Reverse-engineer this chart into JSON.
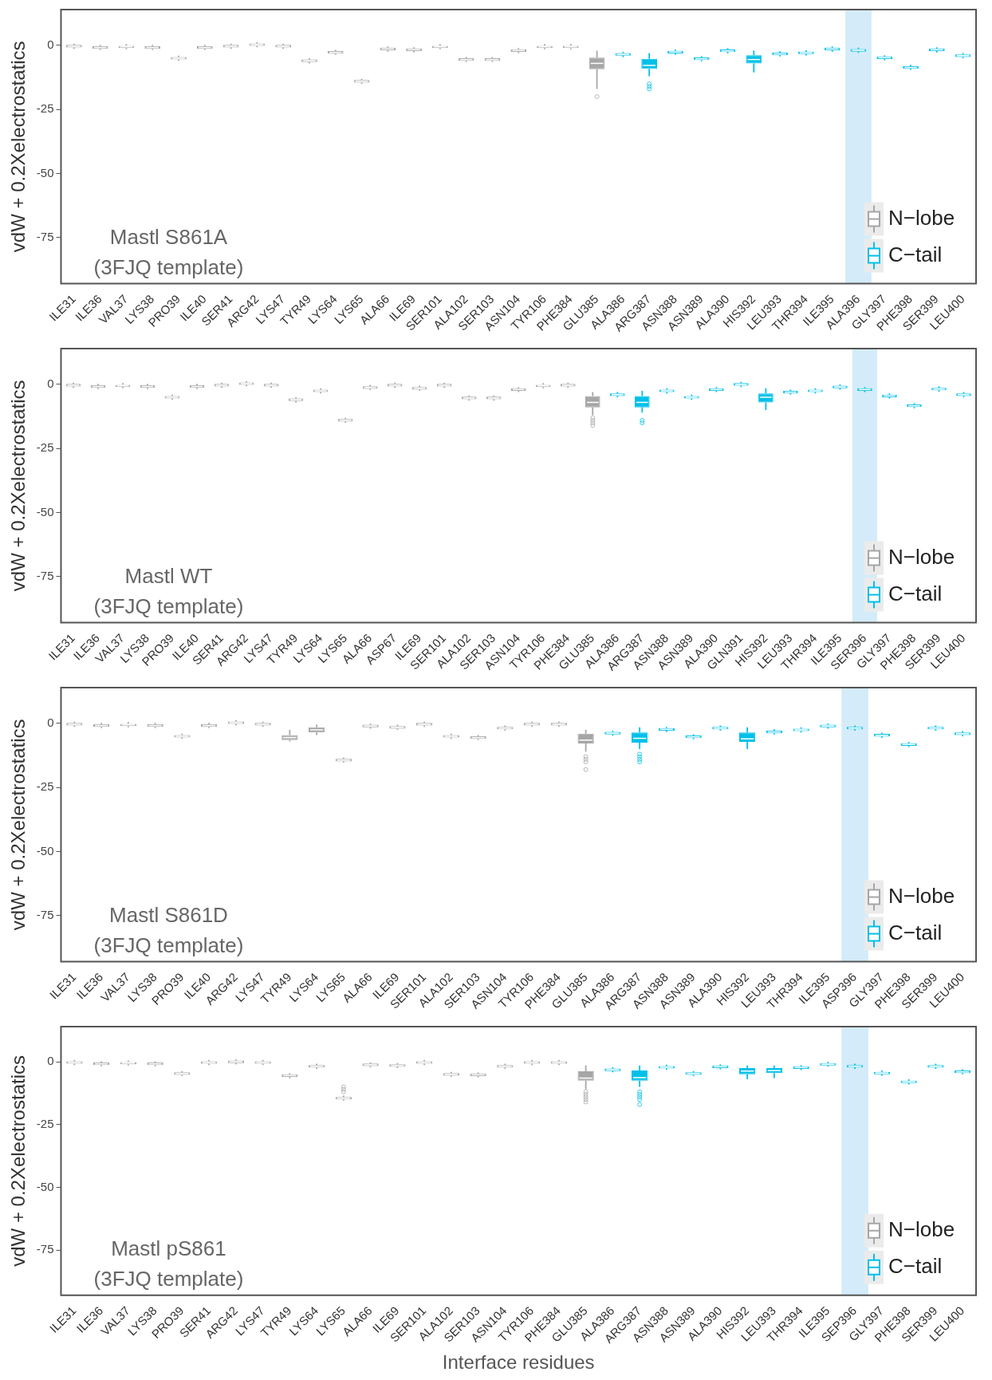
{
  "chart_data": [
    {
      "type": "box",
      "ylabel": "vdW + 0.2Xelectrostatics",
      "annotations": [
        "Mastl S861A",
        "(3FJQ template)"
      ],
      "legend": "bottom right",
      "ylim": [
        -93,
        14
      ],
      "yticks": [
        0,
        -25,
        -50,
        -75
      ],
      "categories": [
        "ILE31",
        "ILE36",
        "VAL37",
        "LYS38",
        "PRO39",
        "ILE40",
        "SER41",
        "ARG42",
        "LYS47",
        "TYR49",
        "LYS64",
        "LYS65",
        "ALA66",
        "ILE69",
        "SER101",
        "ALA102",
        "SER103",
        "ASN104",
        "TYR106",
        "PHE384",
        "GLU385",
        "ALA386",
        "ARG387",
        "ASN388",
        "ASN389",
        "ALA390",
        "HIS392",
        "LEU393",
        "THR394",
        "ILE395",
        "ALA396",
        "GLY397",
        "PHE398",
        "SER399",
        "LEU400"
      ],
      "bands": [
        {
          "axis": "x",
          "from": "ALA396",
          "to": "ALA396",
          "color": "#d4ecf9"
        }
      ],
      "series": [
        {
          "name": "N−lobe",
          "color": "#a6a6a6",
          "boxes": [
            {
              "low": -1.3,
              "q1": -0.8,
              "median": -0.3,
              "q3": 0.2,
              "high": 0.7
            },
            {
              "low": -1.8,
              "q1": -1.3,
              "median": -0.8,
              "q3": -0.3,
              "high": 0.2
            },
            {
              "low": -1.5,
              "q1": -1,
              "median": -0.5,
              "q3": 0,
              "high": 0.5
            },
            {
              "low": -1.8,
              "q1": -1.3,
              "median": -0.8,
              "q3": -0.3,
              "high": 0.2
            },
            {
              "low": -6,
              "q1": -5.5,
              "median": -5,
              "q3": -4.5,
              "high": -4
            },
            {
              "low": -1.8,
              "q1": -1.3,
              "median": -0.8,
              "q3": -0.3,
              "high": 0.2
            },
            {
              "low": -1.3,
              "q1": -0.8,
              "median": -0.3,
              "q3": 0.2,
              "high": 0.7
            },
            {
              "low": -0.7,
              "q1": -0.2,
              "median": 0.3,
              "q3": 0.8,
              "high": 1.3
            },
            {
              "low": -1.3,
              "q1": -0.8,
              "median": -0.3,
              "q3": 0.2,
              "high": 0.7
            },
            {
              "low": -7,
              "q1": -6.5,
              "median": -6,
              "q3": -5.5,
              "high": -5
            },
            {
              "low": -3.7,
              "q1": -3.2,
              "median": -2.7,
              "q3": -2.2,
              "high": -1.7
            },
            {
              "low": -15,
              "q1": -14.5,
              "median": -14,
              "q3": -13.5,
              "high": -13
            },
            {
              "low": -2.4,
              "q1": -1.9,
              "median": -1.4,
              "q3": -0.9,
              "high": -0.4
            },
            {
              "low": -2.7,
              "q1": -2.2,
              "median": -1.7,
              "q3": -1.2,
              "high": -0.7
            },
            {
              "low": -1.5,
              "q1": -1,
              "median": -0.5,
              "q3": 0,
              "high": 0.5
            },
            {
              "low": -6.5,
              "q1": -6,
              "median": -5.5,
              "q3": -5,
              "high": -4.5
            },
            {
              "low": -6.5,
              "q1": -6,
              "median": -5.5,
              "q3": -5,
              "high": -4.5
            },
            {
              "low": -3,
              "q1": -2.5,
              "median": -2,
              "q3": -1.5,
              "high": -1
            },
            {
              "low": -1.5,
              "q1": -1,
              "median": -0.5,
              "q3": 0,
              "high": 0.5
            },
            {
              "low": -1.5,
              "q1": -1,
              "median": -0.5,
              "q3": 0,
              "high": 0.5
            },
            {
              "low": -17,
              "q1": -9.3,
              "median": -7,
              "q3": -4.8,
              "high": -2,
              "outliers": [
                -20
              ]
            },
            null,
            null,
            null,
            null,
            null,
            null,
            null,
            null,
            null,
            null,
            null,
            null,
            null,
            null
          ]
        },
        {
          "name": "C−tail",
          "color": "#00c0ea",
          "boxes": [
            null,
            null,
            null,
            null,
            null,
            null,
            null,
            null,
            null,
            null,
            null,
            null,
            null,
            null,
            null,
            null,
            null,
            null,
            null,
            null,
            null,
            {
              "low": -4.5,
              "q1": -4,
              "median": -3.5,
              "q3": -3,
              "high": -2.5
            },
            {
              "low": -12,
              "q1": -9.1,
              "median": -7.8,
              "q3": -5.2,
              "high": -3,
              "outliers": [
                -15,
                -16,
                -17
              ]
            },
            {
              "low": -3.6,
              "q1": -3.1,
              "median": -2.6,
              "q3": -2.1,
              "high": -1.6
            },
            {
              "low": -6.2,
              "q1": -5.7,
              "median": -5.2,
              "q3": -4.7,
              "high": -4.2
            },
            {
              "low": -3.1,
              "q1": -2.6,
              "median": -2.1,
              "q3": -1.6,
              "high": -1.1
            },
            {
              "low": -10.5,
              "q1": -7,
              "median": -5.5,
              "q3": -3.8,
              "high": -2
            },
            {
              "low": -4.3,
              "q1": -3.8,
              "median": -3.3,
              "q3": -2.8,
              "high": -2.3
            },
            {
              "low": -3.9,
              "q1": -3.4,
              "median": -2.9,
              "q3": -2.4,
              "high": -1.9
            },
            {
              "low": -2.4,
              "q1": -1.9,
              "median": -1.4,
              "q3": -0.9,
              "high": -0.4
            },
            {
              "low": -2.9,
              "q1": -2.4,
              "median": -1.9,
              "q3": -1.4,
              "high": -0.9
            },
            {
              "low": -5.8,
              "q1": -5.3,
              "median": -4.8,
              "q3": -4.3,
              "high": -3.8
            },
            {
              "low": -9.6,
              "q1": -9.1,
              "median": -8.6,
              "q3": -8.1,
              "high": -7.6
            },
            {
              "low": -2.7,
              "q1": -2.2,
              "median": -1.7,
              "q3": -1.2,
              "high": -0.7
            },
            {
              "low": -5,
              "q1": -4.5,
              "median": -4,
              "q3": -3.5,
              "high": -3
            }
          ]
        }
      ]
    },
    {
      "type": "box",
      "ylabel": "vdW + 0.2Xelectrostatics",
      "annotations": [
        "Mastl WT",
        "(3FJQ template)"
      ],
      "legend": "bottom right",
      "ylim": [
        -93,
        14
      ],
      "yticks": [
        0,
        -25,
        -50,
        -75
      ],
      "categories": [
        "ILE31",
        "ILE36",
        "VAL37",
        "LYS38",
        "PRO39",
        "ILE40",
        "SER41",
        "ARG42",
        "LYS47",
        "TYR49",
        "LYS64",
        "LYS65",
        "ALA66",
        "ASP67",
        "ILE69",
        "SER101",
        "ALA102",
        "SER103",
        "ASN104",
        "TYR106",
        "PHE384",
        "GLU385",
        "ALA386",
        "ARG387",
        "ASN388",
        "ASN389",
        "ALA390",
        "GLN391",
        "HIS392",
        "LEU393",
        "THR394",
        "ILE395",
        "SER396",
        "GLY397",
        "PHE398",
        "SER399",
        "LEU400"
      ],
      "bands": [
        {
          "axis": "x",
          "from": "SER396",
          "to": "SER396",
          "color": "#d4ecf9"
        }
      ],
      "series": [
        {
          "name": "N−lobe",
          "color": "#a6a6a6",
          "boxes": [
            {
              "low": -1.3,
              "q1": -0.8,
              "median": -0.3,
              "q3": 0.2,
              "high": 0.7
            },
            {
              "low": -1.8,
              "q1": -1.3,
              "median": -0.8,
              "q3": -0.3,
              "high": 0.2
            },
            {
              "low": -1.5,
              "q1": -1,
              "median": -0.5,
              "q3": 0,
              "high": 0.5
            },
            {
              "low": -1.8,
              "q1": -1.3,
              "median": -0.8,
              "q3": -0.3,
              "high": 0.2
            },
            {
              "low": -6,
              "q1": -5.5,
              "median": -5,
              "q3": -4.5,
              "high": -4
            },
            {
              "low": -1.8,
              "q1": -1.3,
              "median": -0.8,
              "q3": -0.3,
              "high": 0.2
            },
            {
              "low": -1.3,
              "q1": -0.8,
              "median": -0.3,
              "q3": 0.2,
              "high": 0.7
            },
            {
              "low": -0.7,
              "q1": -0.2,
              "median": 0.3,
              "q3": 0.8,
              "high": 1.3
            },
            {
              "low": -1.3,
              "q1": -0.8,
              "median": -0.3,
              "q3": 0.2,
              "high": 0.7
            },
            {
              "low": -7,
              "q1": -6.5,
              "median": -6,
              "q3": -5.5,
              "high": -5
            },
            {
              "low": -3.5,
              "q1": -3,
              "median": -2.5,
              "q3": -2,
              "high": -1.5
            },
            {
              "low": -15,
              "q1": -14.5,
              "median": -14,
              "q3": -13.5,
              "high": -13
            },
            {
              "low": -2.2,
              "q1": -1.7,
              "median": -1.2,
              "q3": -0.7,
              "high": -0.2
            },
            {
              "low": -1.3,
              "q1": -0.8,
              "median": -0.3,
              "q3": 0.2,
              "high": 0.7
            },
            {
              "low": -2.5,
              "q1": -2,
              "median": -1.5,
              "q3": -1,
              "high": -0.5
            },
            {
              "low": -1.3,
              "q1": -0.8,
              "median": -0.3,
              "q3": 0.2,
              "high": 0.7
            },
            {
              "low": -6.3,
              "q1": -5.8,
              "median": -5.3,
              "q3": -4.8,
              "high": -4.3
            },
            {
              "low": -6.3,
              "q1": -5.8,
              "median": -5.3,
              "q3": -4.8,
              "high": -4.3
            },
            {
              "low": -3,
              "q1": -2.5,
              "median": -2,
              "q3": -1.5,
              "high": -1
            },
            {
              "low": -1.5,
              "q1": -1,
              "median": -0.5,
              "q3": 0,
              "high": 0.5
            },
            {
              "low": -1.3,
              "q1": -0.8,
              "median": -0.3,
              "q3": 0.2,
              "high": 0.7
            },
            {
              "low": -12,
              "q1": -9,
              "median": -7,
              "q3": -4.5,
              "high": -3,
              "outliers": [
                -13,
                -14,
                -15,
                -16
              ]
            },
            null,
            null,
            null,
            null,
            null,
            null,
            null,
            null,
            null,
            null,
            null,
            null,
            null,
            null,
            null
          ]
        },
        {
          "name": "C−tail",
          "color": "#00c0ea",
          "boxes": [
            null,
            null,
            null,
            null,
            null,
            null,
            null,
            null,
            null,
            null,
            null,
            null,
            null,
            null,
            null,
            null,
            null,
            null,
            null,
            null,
            null,
            null,
            {
              "low": -5,
              "q1": -4.5,
              "median": -4,
              "q3": -3.5,
              "high": -3
            },
            {
              "low": -11,
              "q1": -9,
              "median": -7,
              "q3": -4.5,
              "high": -2.5,
              "outliers": [
                -14,
                -15
              ]
            },
            {
              "low": -3.5,
              "q1": -3,
              "median": -2.5,
              "q3": -2,
              "high": -1.5
            },
            {
              "low": -6,
              "q1": -5.5,
              "median": -5,
              "q3": -4.5,
              "high": -4
            },
            {
              "low": -3,
              "q1": -2.5,
              "median": -2,
              "q3": -1.5,
              "high": -1
            },
            {
              "low": -1,
              "q1": -0.5,
              "median": 0,
              "q3": 0.5,
              "high": 1
            },
            {
              "low": -10,
              "q1": -7,
              "median": -5,
              "q3": -3.5,
              "high": -1.5
            },
            {
              "low": -4,
              "q1": -3.5,
              "median": -3,
              "q3": -2.5,
              "high": -2
            },
            {
              "low": -3.5,
              "q1": -3,
              "median": -2.5,
              "q3": -2,
              "high": -1.5
            },
            {
              "low": -2,
              "q1": -1.5,
              "median": -1,
              "q3": -0.5,
              "high": 0
            },
            {
              "low": -3,
              "q1": -2.5,
              "median": -2,
              "q3": -1.5,
              "high": -1
            },
            {
              "low": -5.5,
              "q1": -5,
              "median": -4.5,
              "q3": -4,
              "high": -3.5
            },
            {
              "low": -9.3,
              "q1": -8.8,
              "median": -8.3,
              "q3": -7.8,
              "high": -7.3
            },
            {
              "low": -2.8,
              "q1": -2.3,
              "median": -1.8,
              "q3": -1.3,
              "high": -0.8
            },
            {
              "low": -5,
              "q1": -4.5,
              "median": -4,
              "q3": -3.5,
              "high": -3
            }
          ]
        }
      ]
    },
    {
      "type": "box",
      "ylabel": "vdW + 0.2Xelectrostatics",
      "annotations": [
        "Mastl S861D",
        "(3FJQ template)"
      ],
      "legend": "bottom right",
      "ylim": [
        -93,
        14
      ],
      "yticks": [
        0,
        -25,
        -50,
        -75
      ],
      "categories": [
        "ILE31",
        "ILE36",
        "VAL37",
        "LYS38",
        "PRO39",
        "ILE40",
        "ARG42",
        "LYS47",
        "TYR49",
        "LYS64",
        "LYS65",
        "ALA66",
        "ILE69",
        "SER101",
        "ALA102",
        "SER103",
        "ASN104",
        "TYR106",
        "PHE384",
        "GLU385",
        "ALA386",
        "ARG387",
        "ASN388",
        "ASN389",
        "ALA390",
        "HIS392",
        "LEU393",
        "THR394",
        "ILE395",
        "ASP396",
        "GLY397",
        "PHE398",
        "SER399",
        "LEU400"
      ],
      "bands": [
        {
          "axis": "x",
          "from": "ASP396",
          "to": "ASP396",
          "color": "#d4ecf9"
        }
      ],
      "series": [
        {
          "name": "N−lobe",
          "color": "#a6a6a6",
          "boxes": [
            {
              "low": -1.3,
              "q1": -0.8,
              "median": -0.3,
              "q3": 0.2,
              "high": 0.7
            },
            {
              "low": -1.8,
              "q1": -1.3,
              "median": -0.8,
              "q3": -0.3,
              "high": 0.2
            },
            {
              "low": -1.5,
              "q1": -1,
              "median": -0.5,
              "q3": 0,
              "high": 0.5
            },
            {
              "low": -1.8,
              "q1": -1.3,
              "median": -0.8,
              "q3": -0.3,
              "high": 0.2
            },
            {
              "low": -6,
              "q1": -5.5,
              "median": -5,
              "q3": -4.5,
              "high": -4
            },
            {
              "low": -1.8,
              "q1": -1.3,
              "median": -0.8,
              "q3": -0.3,
              "high": 0.2
            },
            {
              "low": -0.7,
              "q1": -0.2,
              "median": 0.3,
              "q3": 0.8,
              "high": 1.3
            },
            {
              "low": -1.3,
              "q1": -0.8,
              "median": -0.3,
              "q3": 0.2,
              "high": 0.7
            },
            {
              "low": -7,
              "q1": -6.5,
              "median": -5.5,
              "q3": -4.5,
              "high": -2.5
            },
            {
              "low": -4.5,
              "q1": -3.5,
              "median": -2.5,
              "q3": -1.5,
              "high": -0.5
            },
            {
              "low": -15.3,
              "q1": -14.8,
              "median": -14.3,
              "q3": -13.8,
              "high": -13.3
            },
            {
              "low": -2,
              "q1": -1.5,
              "median": -1,
              "q3": -0.5,
              "high": 0
            },
            {
              "low": -2.5,
              "q1": -2,
              "median": -1.5,
              "q3": -1,
              "high": -0.5
            },
            {
              "low": -1.3,
              "q1": -0.8,
              "median": -0.3,
              "q3": 0.2,
              "high": 0.7
            },
            {
              "low": -6,
              "q1": -5.5,
              "median": -5,
              "q3": -4.5,
              "high": -4
            },
            {
              "low": -6.5,
              "q1": -6,
              "median": -5.5,
              "q3": -5,
              "high": -4.5
            },
            {
              "low": -2.8,
              "q1": -2.3,
              "median": -1.8,
              "q3": -1.3,
              "high": -0.8
            },
            {
              "low": -1.3,
              "q1": -0.8,
              "median": -0.3,
              "q3": 0.2,
              "high": 0.7
            },
            {
              "low": -1.3,
              "q1": -0.8,
              "median": -0.3,
              "q3": 0.2,
              "high": 0.7
            },
            {
              "low": -11,
              "q1": -7.8,
              "median": -6.5,
              "q3": -4,
              "high": -2.5,
              "outliers": [
                -13,
                -14,
                -15,
                -18
              ]
            },
            null,
            null,
            null,
            null,
            null,
            null,
            null,
            null,
            null,
            null,
            null,
            null,
            null,
            null
          ]
        },
        {
          "name": "C−tail",
          "color": "#00c0ea",
          "boxes": [
            null,
            null,
            null,
            null,
            null,
            null,
            null,
            null,
            null,
            null,
            null,
            null,
            null,
            null,
            null,
            null,
            null,
            null,
            null,
            null,
            {
              "low": -4.8,
              "q1": -4.3,
              "median": -3.8,
              "q3": -3.3,
              "high": -2.8
            },
            {
              "low": -10,
              "q1": -7.5,
              "median": -5.8,
              "q3": -3.5,
              "high": -1.5,
              "outliers": [
                -12,
                -13,
                -14,
                -15
              ]
            },
            {
              "low": -3.3,
              "q1": -2.8,
              "median": -2.3,
              "q3": -1.8,
              "high": -1.3
            },
            {
              "low": -6.2,
              "q1": -5.7,
              "median": -5.2,
              "q3": -4.7,
              "high": -4.2
            },
            {
              "low": -2.8,
              "q1": -2.3,
              "median": -1.8,
              "q3": -1.3,
              "high": -0.8
            },
            {
              "low": -10,
              "q1": -7.2,
              "median": -6,
              "q3": -3.5,
              "high": -1.5
            },
            {
              "low": -4.3,
              "q1": -3.8,
              "median": -3.3,
              "q3": -2.8,
              "high": -2.3
            },
            {
              "low": -3.5,
              "q1": -3,
              "median": -2.5,
              "q3": -2,
              "high": -1.5
            },
            {
              "low": -2,
              "q1": -1.5,
              "median": -1,
              "q3": -0.5,
              "high": 0
            },
            {
              "low": -2.8,
              "q1": -2.3,
              "median": -1.8,
              "q3": -1.3,
              "high": -0.8
            },
            {
              "low": -5.6,
              "q1": -5.1,
              "median": -4.6,
              "q3": -4.1,
              "high": -3.6
            },
            {
              "low": -9.2,
              "q1": -8.7,
              "median": -8.2,
              "q3": -7.7,
              "high": -7.2
            },
            {
              "low": -2.8,
              "q1": -2.3,
              "median": -1.8,
              "q3": -1.3,
              "high": -0.8
            },
            {
              "low": -5,
              "q1": -4.5,
              "median": -4,
              "q3": -3.5,
              "high": -3
            }
          ]
        }
      ]
    },
    {
      "type": "box",
      "ylabel": "vdW + 0.2Xelectrostatics",
      "xlabel": "Interface residues",
      "annotations": [
        "Mastl pS861",
        "(3FJQ template)"
      ],
      "legend": "bottom right",
      "ylim": [
        -93,
        14
      ],
      "yticks": [
        0,
        -25,
        -50,
        -75
      ],
      "categories": [
        "ILE31",
        "ILE36",
        "VAL37",
        "LYS38",
        "PRO39",
        "SER41",
        "ARG42",
        "LYS47",
        "TYR49",
        "LYS64",
        "LYS65",
        "ALA66",
        "ILE69",
        "SER101",
        "ALA102",
        "SER103",
        "ASN104",
        "TYR106",
        "PHE384",
        "GLU385",
        "ALA386",
        "ARG387",
        "ASN388",
        "ASN389",
        "ALA390",
        "HIS392",
        "LEU393",
        "THR394",
        "ILE395",
        "SEP396",
        "GLY397",
        "PHE398",
        "SER399",
        "LEU400"
      ],
      "bands": [
        {
          "axis": "x",
          "from": "SEP396",
          "to": "SEP396",
          "color": "#d4ecf9"
        }
      ],
      "series": [
        {
          "name": "N−lobe",
          "color": "#a6a6a6",
          "boxes": [
            {
              "low": -1.3,
              "q1": -0.8,
              "median": -0.3,
              "q3": 0.2,
              "high": 0.7
            },
            {
              "low": -1.8,
              "q1": -1.3,
              "median": -0.8,
              "q3": -0.3,
              "high": 0.2
            },
            {
              "low": -1.5,
              "q1": -1,
              "median": -0.5,
              "q3": 0,
              "high": 0.5
            },
            {
              "low": -1.8,
              "q1": -1.3,
              "median": -0.8,
              "q3": -0.3,
              "high": 0.2
            },
            {
              "low": -5.7,
              "q1": -5.2,
              "median": -4.7,
              "q3": -4.2,
              "high": -3.7
            },
            {
              "low": -1.3,
              "q1": -0.8,
              "median": -0.3,
              "q3": 0.2,
              "high": 0.7
            },
            {
              "low": -1,
              "q1": -0.5,
              "median": 0,
              "q3": 0.5,
              "high": 1
            },
            {
              "low": -1.3,
              "q1": -0.8,
              "median": -0.3,
              "q3": 0.2,
              "high": 0.7
            },
            {
              "low": -6.5,
              "q1": -6,
              "median": -5.5,
              "q3": -5,
              "high": -4.5
            },
            {
              "low": -2.8,
              "q1": -2.3,
              "median": -1.8,
              "q3": -1.3,
              "high": -0.8
            },
            {
              "low": -15.5,
              "q1": -15,
              "median": -14.5,
              "q3": -14,
              "high": -13.5,
              "outliers": [
                -10,
                -11,
                -12
              ]
            },
            {
              "low": -2.2,
              "q1": -1.7,
              "median": -1.2,
              "q3": -0.7,
              "high": -0.2
            },
            {
              "low": -2.5,
              "q1": -2,
              "median": -1.5,
              "q3": -1,
              "high": -0.5
            },
            {
              "low": -1.3,
              "q1": -0.8,
              "median": -0.3,
              "q3": 0.2,
              "high": 0.7
            },
            {
              "low": -6,
              "q1": -5.5,
              "median": -5,
              "q3": -4.5,
              "high": -4
            },
            {
              "low": -6.2,
              "q1": -5.7,
              "median": -5.2,
              "q3": -4.7,
              "high": -4.2
            },
            {
              "low": -2.8,
              "q1": -2.3,
              "median": -1.8,
              "q3": -1.3,
              "high": -0.8
            },
            {
              "low": -1.3,
              "q1": -0.8,
              "median": -0.3,
              "q3": 0.2,
              "high": 0.7
            },
            {
              "low": -1.3,
              "q1": -0.8,
              "median": -0.3,
              "q3": 0.2,
              "high": 0.7
            },
            {
              "low": -11,
              "q1": -7.5,
              "median": -6.5,
              "q3": -3.8,
              "high": -1.5,
              "outliers": [
                -12,
                -13,
                -14,
                -15,
                -16
              ]
            },
            null,
            null,
            null,
            null,
            null,
            null,
            null,
            null,
            null,
            null,
            null,
            null,
            null,
            null
          ]
        },
        {
          "name": "C−tail",
          "color": "#00c0ea",
          "boxes": [
            null,
            null,
            null,
            null,
            null,
            null,
            null,
            null,
            null,
            null,
            null,
            null,
            null,
            null,
            null,
            null,
            null,
            null,
            null,
            null,
            {
              "low": -4.2,
              "q1": -3.7,
              "median": -3.2,
              "q3": -2.7,
              "high": -2.2
            },
            {
              "low": -10,
              "q1": -7.5,
              "median": -6.3,
              "q3": -3.5,
              "high": -1.5,
              "outliers": [
                -12,
                -13,
                -14,
                -15,
                -17
              ]
            },
            {
              "low": -3.2,
              "q1": -2.7,
              "median": -2.2,
              "q3": -1.7,
              "high": -1.2
            },
            {
              "low": -5.7,
              "q1": -5.2,
              "median": -4.7,
              "q3": -4.2,
              "high": -3.7
            },
            {
              "low": -3,
              "q1": -2.5,
              "median": -2,
              "q3": -1.5,
              "high": -1
            },
            {
              "low": -7,
              "q1": -5,
              "median": -3.7,
              "q3": -2.5,
              "high": -1.5
            },
            {
              "low": -6.5,
              "q1": -4.5,
              "median": -3.5,
              "q3": -2.5,
              "high": -1.5
            },
            {
              "low": -3.3,
              "q1": -2.8,
              "median": -2.3,
              "q3": -1.8,
              "high": -1.3
            },
            {
              "low": -2,
              "q1": -1.5,
              "median": -1,
              "q3": -0.5,
              "high": 0
            },
            {
              "low": -2.8,
              "q1": -2.3,
              "median": -1.8,
              "q3": -1.3,
              "high": -0.8
            },
            {
              "low": -5.5,
              "q1": -5,
              "median": -4.5,
              "q3": -4,
              "high": -3.5
            },
            {
              "low": -9,
              "q1": -8.5,
              "median": -8,
              "q3": -7.5,
              "high": -7
            },
            {
              "low": -2.8,
              "q1": -2.3,
              "median": -1.8,
              "q3": -1.3,
              "high": -0.8
            },
            {
              "low": -5,
              "q1": -4.5,
              "median": -4,
              "q3": -3.5,
              "high": -3
            }
          ]
        }
      ]
    }
  ]
}
